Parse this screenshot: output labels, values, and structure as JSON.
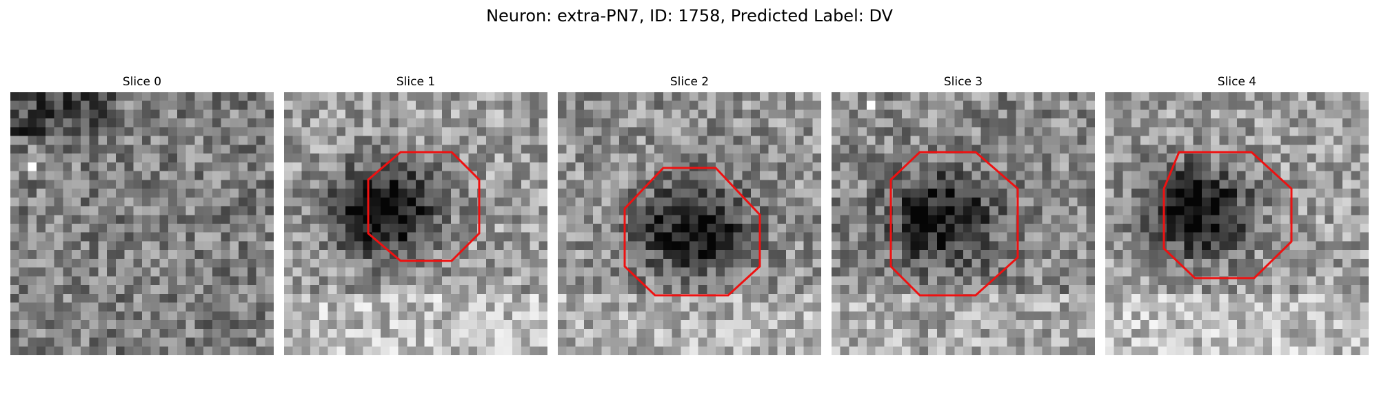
{
  "figure": {
    "title": "Neuron: extra-PN7, ID: 1758, Predicted Label: DV"
  },
  "slices": [
    {
      "title": "Slice 0",
      "has_boundary": false,
      "blob_strength": 0.0,
      "noise_seed": 11,
      "darkness_bias": 0.12
    },
    {
      "title": "Slice 1",
      "has_boundary": true,
      "blob_strength": 0.85,
      "noise_seed": 23,
      "darkness_bias": 0.0
    },
    {
      "title": "Slice 2",
      "has_boundary": true,
      "blob_strength": 0.7,
      "noise_seed": 37,
      "darkness_bias": 0.05
    },
    {
      "title": "Slice 3",
      "has_boundary": true,
      "blob_strength": 0.65,
      "noise_seed": 41,
      "darkness_bias": 0.08
    },
    {
      "title": "Slice 4",
      "has_boundary": true,
      "blob_strength": 0.8,
      "noise_seed": 53,
      "darkness_bias": 0.0
    }
  ],
  "colors": {
    "boundary": "#ee1111",
    "background": "#ffffff"
  }
}
